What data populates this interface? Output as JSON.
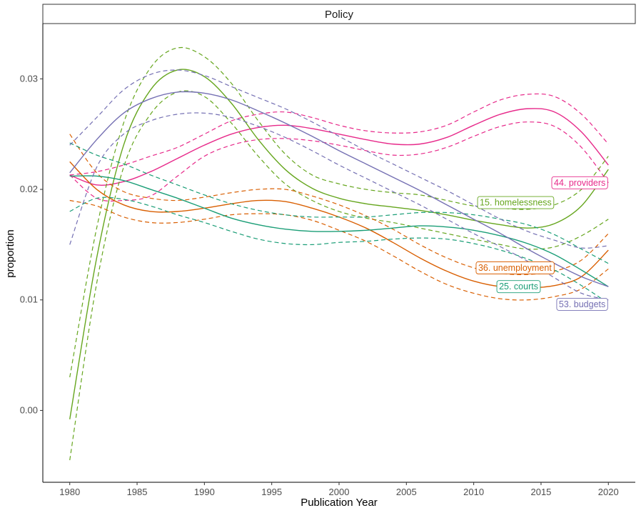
{
  "chart_data": {
    "type": "line",
    "title": "",
    "facet": "Policy",
    "xlabel": "Publication Year",
    "ylabel": "proportion",
    "xlim": [
      1978,
      2022
    ],
    "ylim": [
      -0.0065,
      0.035
    ],
    "xticks": [
      1980,
      1985,
      1990,
      1995,
      2000,
      2005,
      2010,
      2015,
      2020
    ],
    "yticks": [
      0.0,
      0.01,
      0.02,
      0.03
    ],
    "ytick_labels": [
      "0.00",
      "0.01",
      "0.02",
      "0.03"
    ],
    "grid": false,
    "x": [
      1980,
      1982,
      1984,
      1986,
      1988,
      1990,
      1992,
      1994,
      1996,
      1998,
      2000,
      2002,
      2004,
      2006,
      2008,
      2010,
      2012,
      2014,
      2016,
      2018,
      2020
    ],
    "series": [
      {
        "name": "44. providers",
        "color": "#e7298a",
        "label_x": 2020,
        "label_y": 0.0206,
        "fit": [
          0.0213,
          0.0204,
          0.0207,
          0.0216,
          0.0228,
          0.024,
          0.025,
          0.0256,
          0.0258,
          0.0255,
          0.025,
          0.0245,
          0.0241,
          0.0241,
          0.0247,
          0.0258,
          0.0268,
          0.0273,
          0.027,
          0.0252,
          0.0222
        ],
        "upper": [
          0.0213,
          0.0216,
          0.0222,
          0.023,
          0.0238,
          0.025,
          0.0262,
          0.0268,
          0.027,
          0.0265,
          0.0258,
          0.0253,
          0.0251,
          0.0252,
          0.0258,
          0.027,
          0.0281,
          0.0286,
          0.0284,
          0.0268,
          0.0241
        ],
        "lower": [
          0.0213,
          0.0192,
          0.019,
          0.0194,
          0.0212,
          0.023,
          0.024,
          0.0245,
          0.0246,
          0.0244,
          0.024,
          0.0235,
          0.0231,
          0.0232,
          0.0238,
          0.0248,
          0.0257,
          0.0261,
          0.0257,
          0.0238,
          0.0206
        ]
      },
      {
        "name": "15. homelessness",
        "color": "#66a61e",
        "label_x": 2016,
        "label_y": 0.0188,
        "fit": [
          -0.0008,
          0.0138,
          0.024,
          0.029,
          0.0308,
          0.0302,
          0.0278,
          0.0245,
          0.0218,
          0.0201,
          0.0192,
          0.0187,
          0.0184,
          0.0181,
          0.0177,
          0.0172,
          0.0168,
          0.0165,
          0.0169,
          0.0185,
          0.0218
        ],
        "upper": [
          0.003,
          0.0165,
          0.026,
          0.031,
          0.0328,
          0.032,
          0.0296,
          0.0262,
          0.0232,
          0.0213,
          0.0205,
          0.02,
          0.0197,
          0.0195,
          0.019,
          0.0185,
          0.0183,
          0.0182,
          0.0186,
          0.02,
          0.023
        ],
        "lower": [
          -0.0045,
          0.0115,
          0.022,
          0.0268,
          0.0288,
          0.0284,
          0.026,
          0.023,
          0.0205,
          0.019,
          0.018,
          0.0174,
          0.017,
          0.0165,
          0.016,
          0.0155,
          0.015,
          0.0146,
          0.0148,
          0.0158,
          0.0173
        ]
      },
      {
        "name": "36. unemployment",
        "color": "#d95f02",
        "label_x": 2016,
        "label_y": 0.0129,
        "fit": [
          0.0225,
          0.02,
          0.0186,
          0.018,
          0.018,
          0.0183,
          0.0187,
          0.019,
          0.0189,
          0.0183,
          0.0175,
          0.0165,
          0.0152,
          0.0138,
          0.0126,
          0.0117,
          0.0112,
          0.0111,
          0.0113,
          0.0121,
          0.0145
        ],
        "upper": [
          0.025,
          0.0215,
          0.0198,
          0.0192,
          0.019,
          0.0193,
          0.0197,
          0.02,
          0.02,
          0.0194,
          0.0186,
          0.0176,
          0.0164,
          0.015,
          0.0138,
          0.0129,
          0.0124,
          0.0123,
          0.0126,
          0.0136,
          0.016
        ],
        "lower": [
          0.019,
          0.0185,
          0.0175,
          0.017,
          0.017,
          0.0173,
          0.0177,
          0.0178,
          0.0177,
          0.0172,
          0.0163,
          0.0153,
          0.014,
          0.0126,
          0.0114,
          0.0106,
          0.0101,
          0.01,
          0.0103,
          0.011,
          0.0128
        ]
      },
      {
        "name": "25. courts",
        "color": "#1b9e77",
        "label_x": 2015,
        "label_y": 0.0112,
        "fit": [
          0.0212,
          0.0212,
          0.0208,
          0.02,
          0.0192,
          0.0183,
          0.0174,
          0.0168,
          0.0164,
          0.0162,
          0.0162,
          0.0163,
          0.0165,
          0.0167,
          0.0166,
          0.0163,
          0.0158,
          0.0151,
          0.0141,
          0.0127,
          0.0112
        ],
        "upper": [
          0.0242,
          0.0231,
          0.0223,
          0.0213,
          0.0204,
          0.0195,
          0.0187,
          0.0181,
          0.0177,
          0.0175,
          0.0175,
          0.0175,
          0.0177,
          0.0179,
          0.0179,
          0.0177,
          0.0173,
          0.0168,
          0.0159,
          0.0146,
          0.0133
        ],
        "lower": [
          0.018,
          0.0192,
          0.0191,
          0.0185,
          0.0177,
          0.017,
          0.0162,
          0.0155,
          0.0151,
          0.015,
          0.0152,
          0.0153,
          0.0155,
          0.0156,
          0.0155,
          0.0151,
          0.0145,
          0.0137,
          0.0127,
          0.0113,
          0.0097
        ]
      },
      {
        "name": "53. budgets",
        "color": "#7570b3",
        "label_x": 2020,
        "label_y": 0.0096,
        "fit": [
          0.0215,
          0.0245,
          0.0269,
          0.0282,
          0.0288,
          0.0287,
          0.0281,
          0.0271,
          0.026,
          0.0248,
          0.0235,
          0.0223,
          0.0211,
          0.0199,
          0.0186,
          0.0173,
          0.016,
          0.0146,
          0.0133,
          0.0121,
          0.0112
        ],
        "upper": [
          0.024,
          0.0265,
          0.029,
          0.0304,
          0.0308,
          0.0303,
          0.0293,
          0.0283,
          0.0273,
          0.0261,
          0.0248,
          0.0235,
          0.0223,
          0.0211,
          0.0199,
          0.0186,
          0.0173,
          0.0162,
          0.0154,
          0.0147,
          0.0149
        ],
        "lower": [
          0.015,
          0.022,
          0.025,
          0.0262,
          0.0268,
          0.0269,
          0.0265,
          0.0257,
          0.0247,
          0.0235,
          0.0222,
          0.021,
          0.0198,
          0.0186,
          0.0173,
          0.016,
          0.0148,
          0.0135,
          0.012,
          0.0106,
          0.01
        ]
      }
    ]
  }
}
